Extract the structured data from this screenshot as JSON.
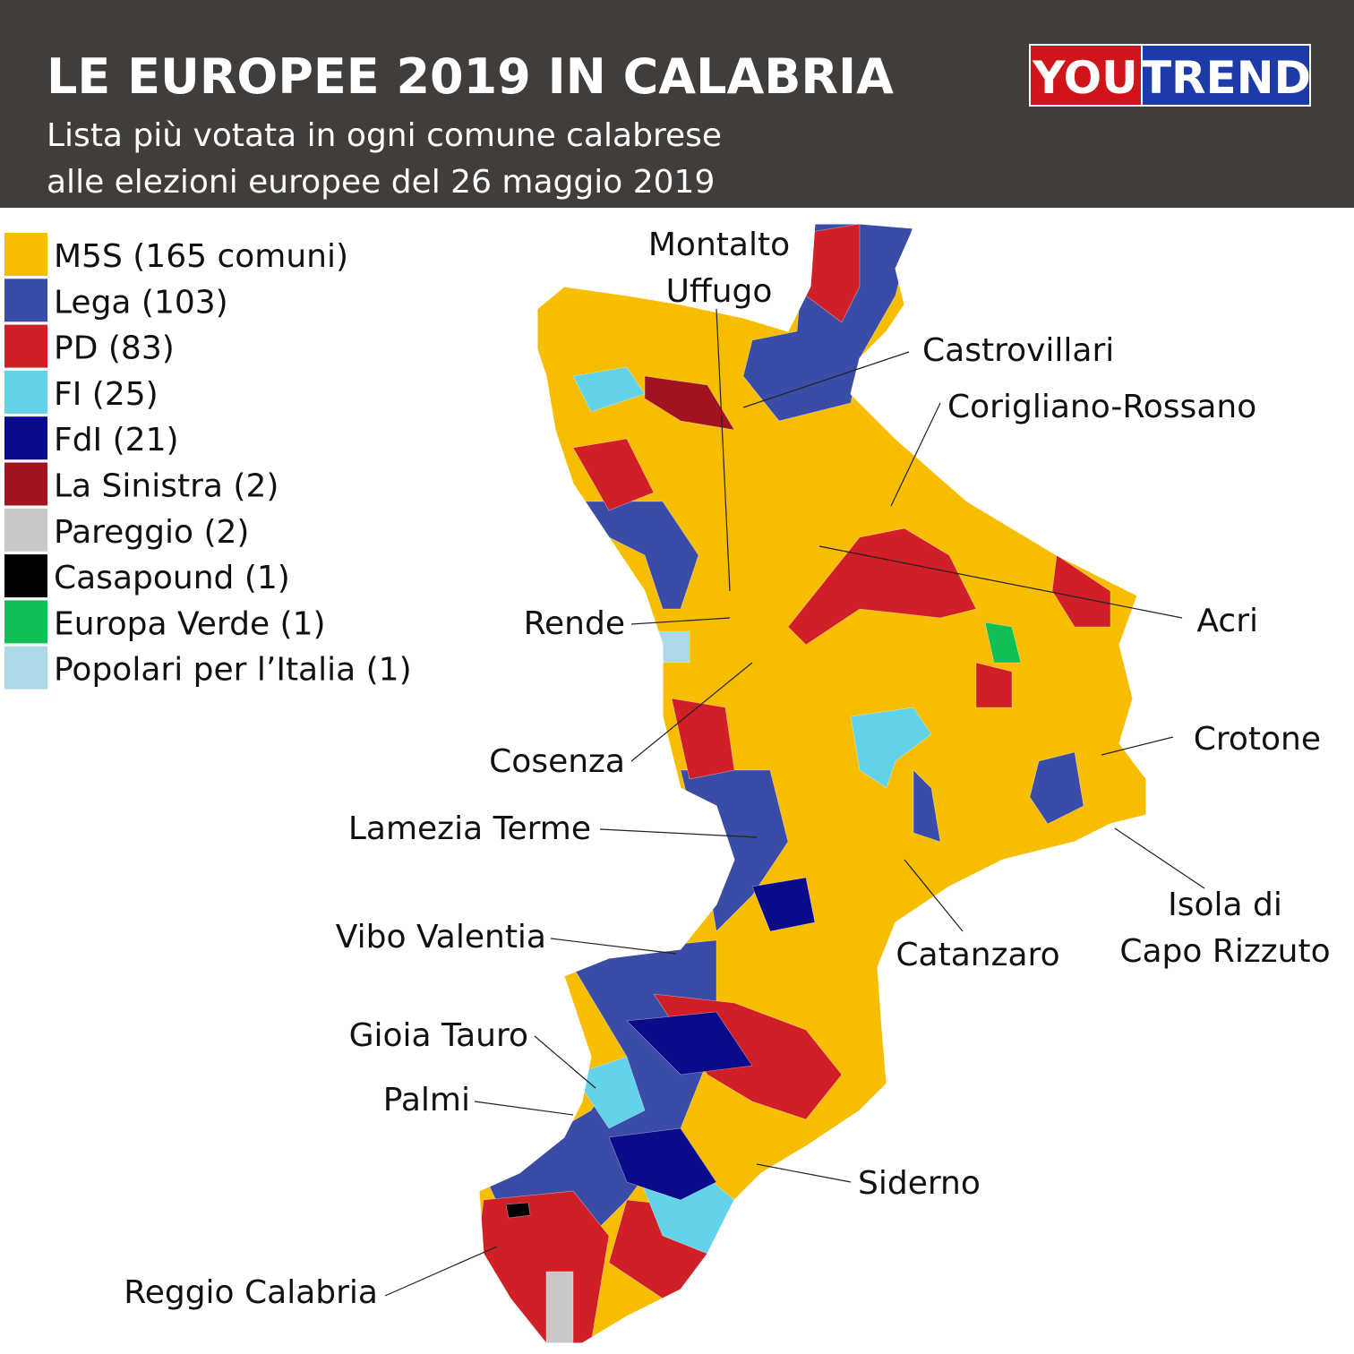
{
  "header": {
    "title": "LE EUROPEE 2019 IN CALABRIA",
    "subtitle": [
      "Lista più votata in ogni comune calabrese",
      "alle elezioni europee del 26 maggio 2019"
    ],
    "logo": [
      "YOU",
      "TREND"
    ]
  },
  "legend": [
    {
      "label": "M5S (165 comuni)",
      "color": "#f7be00"
    },
    {
      "label": "Lega (103)",
      "color": "#3a4ca5"
    },
    {
      "label": "PD (83)",
      "color": "#d01f26"
    },
    {
      "label": "FI (25)",
      "color": "#62d3e8"
    },
    {
      "label": "FdI (21)",
      "color": "#0b0a8a"
    },
    {
      "label": "La Sinistra (2)",
      "color": "#a1131f"
    },
    {
      "label": "Pareggio (2)",
      "color": "#c8c8c8"
    },
    {
      "label": "Casapound (1)",
      "color": "#000000"
    },
    {
      "label": "Europa Verde (1)",
      "color": "#10bf55"
    },
    {
      "label": "Popolari per l’Italia (1)",
      "color": "#add8e6"
    }
  ],
  "places": [
    {
      "lines": [
        "Montalto",
        "Uffugo"
      ]
    },
    {
      "lines": [
        "Castrovillari"
      ]
    },
    {
      "lines": [
        "Corigliano-Rossano"
      ]
    },
    {
      "lines": [
        "Acri"
      ]
    },
    {
      "lines": [
        "Rende"
      ]
    },
    {
      "lines": [
        "Crotone"
      ]
    },
    {
      "lines": [
        "Cosenza"
      ]
    },
    {
      "lines": [
        "Lamezia Terme"
      ]
    },
    {
      "lines": [
        "Isola di",
        "Capo Rizzuto"
      ]
    },
    {
      "lines": [
        "Vibo Valentia"
      ]
    },
    {
      "lines": [
        "Catanzaro"
      ]
    },
    {
      "lines": [
        "Gioia Tauro"
      ]
    },
    {
      "lines": [
        "Palmi"
      ]
    },
    {
      "lines": [
        "Siderno"
      ]
    },
    {
      "lines": [
        "Reggio Calabria"
      ]
    }
  ]
}
